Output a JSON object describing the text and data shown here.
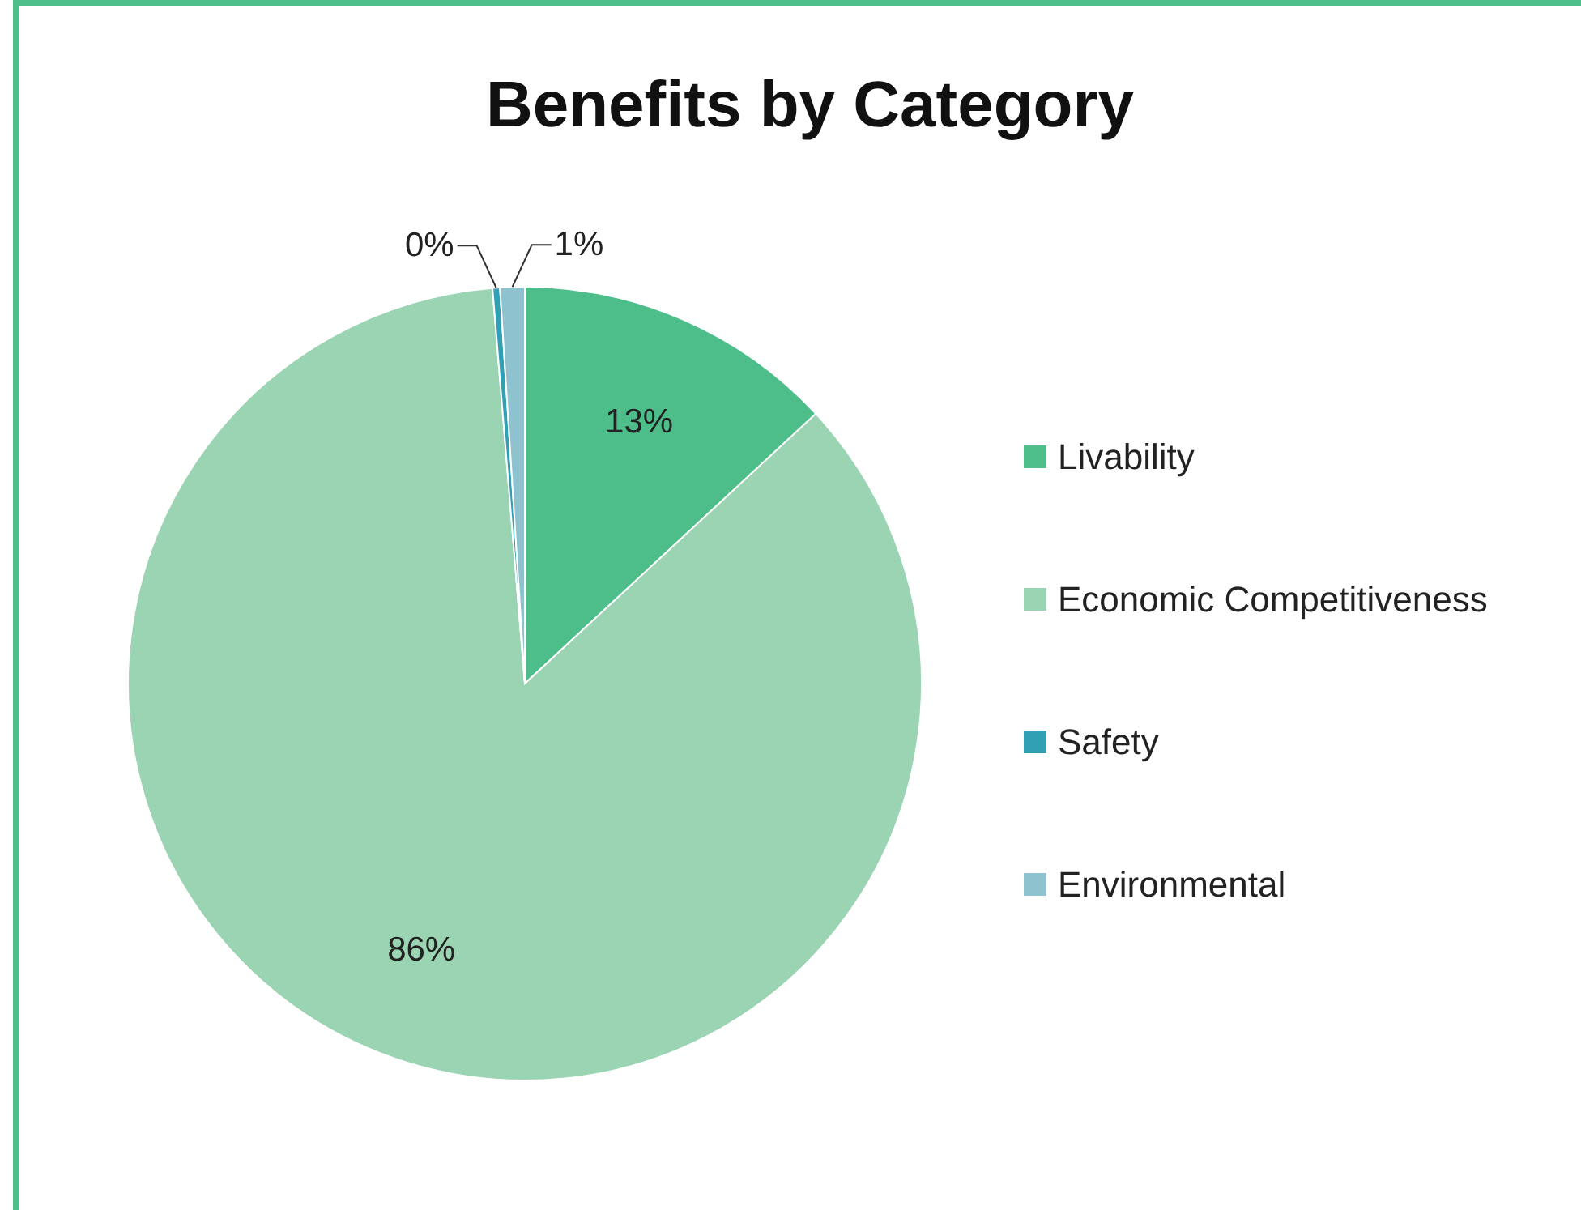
{
  "chart_data": {
    "type": "pie",
    "title": "Benefits by Category",
    "categories": [
      "Livability",
      "Economic Competitiveness",
      "Safety",
      "Environmental"
    ],
    "values": [
      13.1,
      85.6,
      0.3,
      1.0
    ],
    "value_labels": [
      "13%",
      "86%",
      "0%",
      "1%"
    ],
    "colors": [
      "#4dbd8a",
      "#9bd4b2",
      "#31a0b5",
      "#8fc2cf"
    ],
    "legend": "right"
  }
}
